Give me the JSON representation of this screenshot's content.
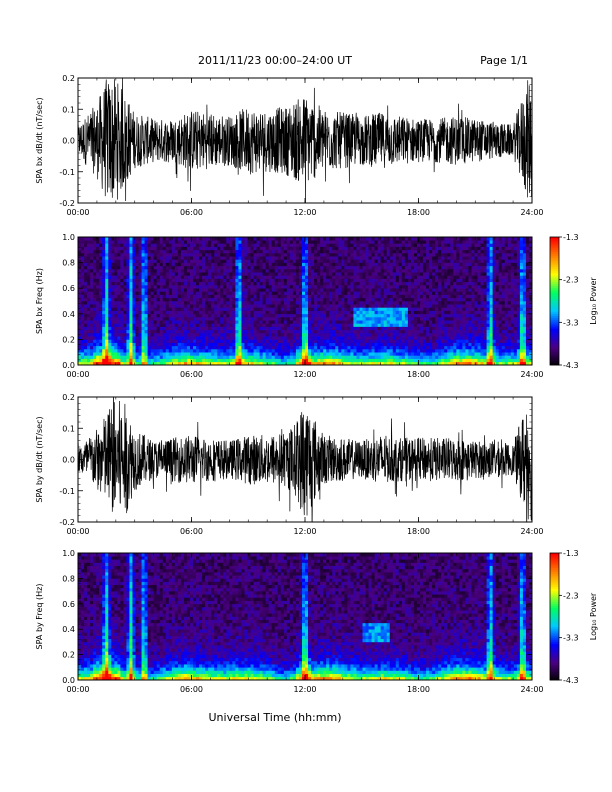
{
  "header": {
    "date_range": "2011/11/23  00:00–24:00 UT",
    "page": "Page 1/1"
  },
  "x_axis": {
    "ticks": [
      "00:00",
      "06:00",
      "12:00",
      "18:00",
      "24:00"
    ],
    "title": "Universal Time (hh:mm)"
  },
  "colorbar": {
    "ticks": [
      "-1.3",
      "-2.3",
      "-3.3",
      "-4.3"
    ],
    "label": "Log₁₀ Power",
    "colors": [
      "#000000",
      "#4b0082",
      "#0000ff",
      "#00c8ff",
      "#00ff60",
      "#ffff00",
      "#ff8000",
      "#ff0000"
    ]
  },
  "chart_data": [
    {
      "type": "line",
      "ylabel": "SPA bx dB/dt (nT/sec)",
      "xlim": [
        0,
        24
      ],
      "ylim": [
        -0.2,
        0.2
      ],
      "yticks": [
        "0.2",
        "0.1",
        "0.0",
        "-0.1",
        "-0.2"
      ],
      "grid": false,
      "x_hours": [
        0,
        1,
        1.5,
        2,
        2.5,
        3,
        4,
        5,
        6,
        7,
        8,
        9,
        10,
        11,
        11.5,
        12,
        13,
        14,
        15,
        16,
        17,
        18,
        19,
        20,
        21,
        22,
        23,
        23.8
      ],
      "envelope_amplitude": [
        0.05,
        0.12,
        0.2,
        0.2,
        0.15,
        0.09,
        0.07,
        0.07,
        0.1,
        0.09,
        0.08,
        0.11,
        0.1,
        0.11,
        0.13,
        0.15,
        0.1,
        0.09,
        0.08,
        0.09,
        0.08,
        0.07,
        0.07,
        0.08,
        0.07,
        0.06,
        0.05,
        0.2
      ]
    },
    {
      "type": "heatmap",
      "ylabel": "SPA bx Freq (Hz)",
      "xlim": [
        0,
        24
      ],
      "ylim": [
        0,
        1.0
      ],
      "yticks": [
        "1.0",
        "0.8",
        "0.6",
        "0.4",
        "0.2",
        "0.0"
      ],
      "zlim": [
        -4.3,
        -1.3
      ],
      "description_of_features": {
        "broadband_bursts_hours": [
          1.5,
          2.8,
          3.5,
          8.5,
          12.0,
          21.8,
          23.5
        ],
        "band_0.3_0.45Hz_hours": [
          14.5,
          17.5
        ]
      }
    },
    {
      "type": "line",
      "ylabel": "SPA by dB/dt (nT/sec)",
      "xlim": [
        0,
        24
      ],
      "ylim": [
        -0.2,
        0.2
      ],
      "yticks": [
        "0.2",
        "0.1",
        "0.0",
        "-0.1",
        "-0.2"
      ],
      "grid": false,
      "x_hours": [
        0,
        1,
        1.5,
        2,
        2.5,
        3,
        4,
        5,
        6,
        7,
        8,
        9,
        10,
        11,
        11.5,
        12,
        13,
        14,
        15,
        16,
        17,
        18,
        19,
        20,
        21,
        22,
        23,
        23.8
      ],
      "envelope_amplitude": [
        0.04,
        0.1,
        0.15,
        0.2,
        0.18,
        0.1,
        0.06,
        0.07,
        0.08,
        0.07,
        0.06,
        0.08,
        0.08,
        0.09,
        0.12,
        0.2,
        0.08,
        0.07,
        0.06,
        0.08,
        0.07,
        0.07,
        0.07,
        0.07,
        0.06,
        0.06,
        0.05,
        0.2
      ]
    },
    {
      "type": "heatmap",
      "ylabel": "SPA by Freq (Hz)",
      "xlim": [
        0,
        24
      ],
      "ylim": [
        0,
        1.0
      ],
      "yticks": [
        "1.0",
        "0.8",
        "0.6",
        "0.4",
        "0.2",
        "0.0"
      ],
      "zlim": [
        -4.3,
        -1.3
      ],
      "description_of_features": {
        "broadband_bursts_hours": [
          1.5,
          2.8,
          3.5,
          12.0,
          21.8,
          23.5
        ],
        "band_0.3_0.45Hz_hours": [
          15.0,
          16.5
        ]
      }
    }
  ]
}
